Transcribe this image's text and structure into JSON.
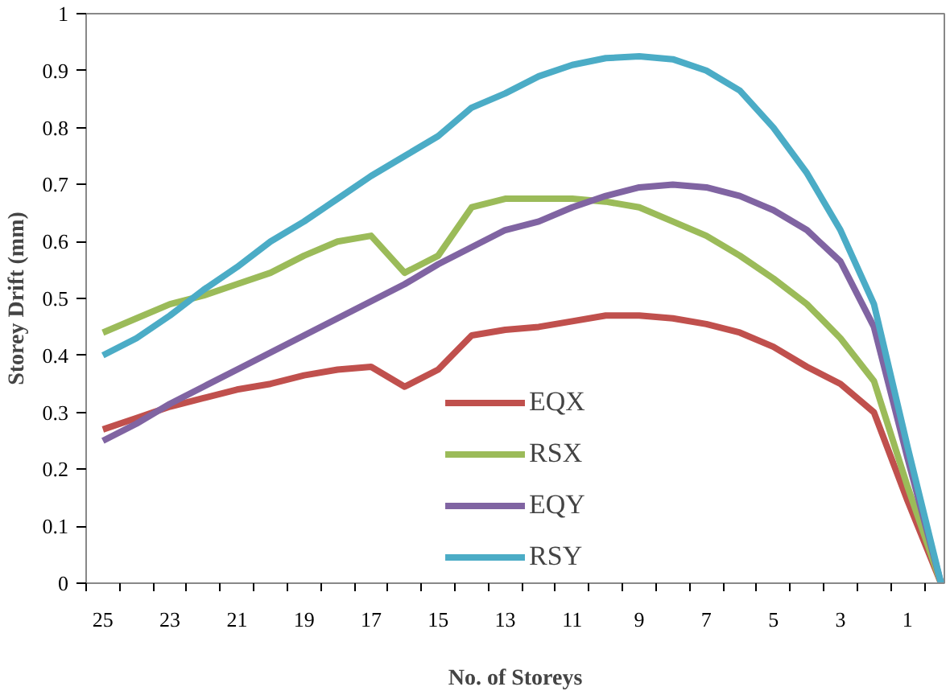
{
  "chart_data": {
    "type": "line",
    "xlabel": "No. of Storeys",
    "ylabel": "Storey Drift (mm)",
    "categories": [
      "25",
      null,
      "23",
      null,
      "21",
      null,
      "19",
      null,
      "17",
      null,
      "15",
      null,
      "13",
      null,
      "11",
      null,
      "9",
      null,
      "7",
      null,
      "5",
      null,
      "3",
      null,
      "1",
      null
    ],
    "ylim": [
      0,
      1
    ],
    "yticks": [
      0,
      0.1,
      0.2,
      0.3,
      0.4,
      0.5,
      0.6,
      0.7,
      0.8,
      0.9,
      1
    ],
    "grid": false,
    "legend": "bottom",
    "marker": "none",
    "line_style": "solid",
    "series": [
      {
        "name": "EQX",
        "color": "#c0504d",
        "values": [
          0.27,
          0.29,
          0.31,
          0.325,
          0.34,
          0.35,
          0.365,
          0.375,
          0.38,
          0.345,
          0.375,
          0.435,
          0.445,
          0.45,
          0.46,
          0.47,
          0.47,
          0.465,
          0.455,
          0.44,
          0.415,
          0.38,
          0.35,
          0.3,
          0.145,
          0
        ]
      },
      {
        "name": "RSX",
        "color": "#9bbb59",
        "values": [
          0.44,
          0.465,
          0.49,
          0.505,
          0.525,
          0.545,
          0.575,
          0.6,
          0.61,
          0.545,
          0.575,
          0.66,
          0.675,
          0.675,
          0.675,
          0.67,
          0.66,
          0.635,
          0.61,
          0.575,
          0.535,
          0.49,
          0.43,
          0.355,
          0.17,
          0
        ]
      },
      {
        "name": "EQY",
        "color": "#8064a2",
        "values": [
          0.25,
          0.28,
          0.315,
          0.345,
          0.375,
          0.405,
          0.435,
          0.465,
          0.495,
          0.525,
          0.56,
          0.59,
          0.62,
          0.635,
          0.66,
          0.68,
          0.695,
          0.7,
          0.695,
          0.68,
          0.655,
          0.62,
          0.565,
          0.45,
          0.22,
          0
        ]
      },
      {
        "name": "RSY",
        "color": "#4bacc6",
        "values": [
          0.4,
          0.43,
          0.47,
          0.515,
          0.555,
          0.6,
          0.635,
          0.675,
          0.715,
          0.75,
          0.785,
          0.835,
          0.86,
          0.89,
          0.91,
          0.922,
          0.925,
          0.92,
          0.9,
          0.865,
          0.8,
          0.72,
          0.62,
          0.49,
          0.24,
          0
        ]
      }
    ]
  }
}
